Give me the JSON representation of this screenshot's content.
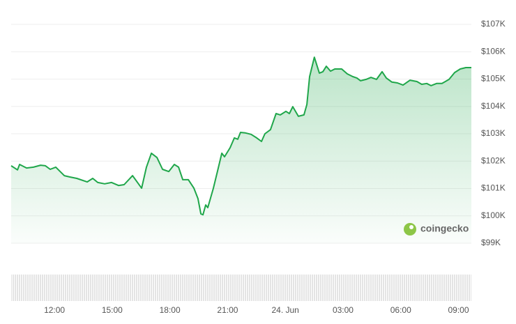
{
  "chart_data": {
    "type": "area",
    "watermark": "coingecko",
    "color": "#1fa64a",
    "x": [
      9.75,
      10.08,
      10.19,
      10.55,
      10.91,
      11.28,
      11.53,
      11.78,
      12.07,
      12.51,
      12.8,
      13.16,
      13.7,
      13.99,
      14.25,
      14.61,
      14.97,
      15.33,
      15.62,
      16.06,
      16.53,
      16.78,
      17.04,
      17.33,
      17.62,
      17.94,
      18.23,
      18.45,
      18.67,
      18.96,
      19.25,
      19.46,
      19.61,
      19.72,
      19.86,
      19.97,
      20.26,
      20.48,
      20.7,
      20.84,
      21.13,
      21.35,
      21.53,
      21.67,
      21.93,
      22.22,
      22.51,
      22.76,
      22.94,
      23.23,
      23.52,
      23.74,
      24.03,
      24.21,
      24.39,
      24.68,
      24.97,
      25.12,
      25.26,
      25.51,
      25.77,
      25.95,
      26.13,
      26.35,
      26.57,
      26.93,
      27.22,
      27.51,
      27.72,
      27.91,
      28.2,
      28.45,
      28.74,
      29.03,
      29.25,
      29.54,
      29.83,
      30.12,
      30.48,
      30.84,
      31.09,
      31.35,
      31.57,
      31.86,
      32.14,
      32.51,
      32.8,
      33.09,
      33.38,
      33.67
    ],
    "values": [
      101830,
      101680,
      101880,
      101750,
      101780,
      101850,
      101830,
      101700,
      101780,
      101470,
      101420,
      101370,
      101240,
      101370,
      101220,
      101170,
      101220,
      101110,
      101140,
      101470,
      101010,
      101780,
      102290,
      102130,
      101700,
      101620,
      101880,
      101780,
      101320,
      101320,
      101010,
      100630,
      100070,
      100040,
      100400,
      100300,
      101010,
      101650,
      102290,
      102160,
      102490,
      102850,
      102800,
      103050,
      103030,
      102980,
      102850,
      102720,
      103000,
      103150,
      103740,
      103690,
      103820,
      103740,
      103990,
      103640,
      103690,
      104070,
      105090,
      105800,
      105220,
      105270,
      105470,
      105290,
      105370,
      105370,
      105190,
      105090,
      105040,
      104940,
      104990,
      105060,
      104990,
      105270,
      105040,
      104890,
      104860,
      104780,
      104960,
      104910,
      104810,
      104840,
      104760,
      104840,
      104840,
      104990,
      105240,
      105370,
      105420,
      105420
    ],
    "xlim": [
      9.75,
      33.67
    ],
    "xticks": [
      {
        "value": 12,
        "label": "12:00"
      },
      {
        "value": 15,
        "label": "15:00"
      },
      {
        "value": 18,
        "label": "18:00"
      },
      {
        "value": 21,
        "label": "21:00"
      },
      {
        "value": 24,
        "label": "24. Jun"
      },
      {
        "value": 27,
        "label": "03:00"
      },
      {
        "value": 30,
        "label": "06:00"
      },
      {
        "value": 33,
        "label": "09:00"
      }
    ],
    "ylim": [
      99000,
      107000
    ],
    "yticks": [
      {
        "value": 99000,
        "label": "$99K"
      },
      {
        "value": 100000,
        "label": "$100K"
      },
      {
        "value": 101000,
        "label": "$101K"
      },
      {
        "value": 102000,
        "label": "$102K"
      },
      {
        "value": 103000,
        "label": "$103K"
      },
      {
        "value": 104000,
        "label": "$104K"
      },
      {
        "value": 105000,
        "label": "$105K"
      },
      {
        "value": 106000,
        "label": "$106K"
      },
      {
        "value": 107000,
        "label": "$107K"
      }
    ],
    "grid": true
  }
}
